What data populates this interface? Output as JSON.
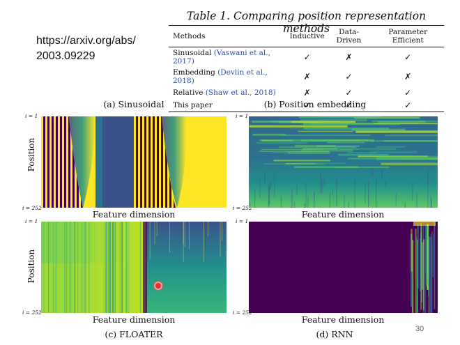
{
  "url": {
    "line1": "https://arxiv.org/abs/",
    "line2": "2003.09229"
  },
  "table": {
    "title_prefix": "Table 1.",
    "title_rest": " Comparing position representation methods",
    "headers": [
      "Methods",
      "Inductive",
      "Data-Driven",
      "Parameter Efficient"
    ],
    "rows": [
      {
        "method": "Sinusoidal",
        "cite": "(Vaswani et al., 2017)",
        "inductive": "✓",
        "data_driven": "✗",
        "param_eff": "✓"
      },
      {
        "method": "Embedding",
        "cite": "(Devlin et al., 2018)",
        "inductive": "✗",
        "data_driven": "✓",
        "param_eff": "✗"
      },
      {
        "method": "Relative",
        "cite": "(Shaw et al., 2018)",
        "inductive": "✗",
        "data_driven": "✓",
        "param_eff": "✓"
      },
      {
        "method": "This paper",
        "cite": "",
        "inductive": "✓",
        "data_driven": "✓",
        "param_eff": "✓"
      }
    ]
  },
  "panels": {
    "a": {
      "caption": "(a) Sinusoidal",
      "ylabel": "Position",
      "xlabel": "Feature dimension",
      "ytop": "i = 1",
      "ybottom": "i = 252"
    },
    "b": {
      "caption": "(b) Position embedding",
      "xlabel": "Feature dimension",
      "ytop": "i = 1",
      "ybottom": "i = 252"
    },
    "c": {
      "caption": "(c) FLOATER",
      "ylabel": "Position",
      "xlabel": "Feature dimension",
      "ytop": "i = 1",
      "ybottom": "i = 252"
    },
    "d": {
      "caption": "(d) RNN",
      "xlabel": "Feature dimension",
      "ytop": "i = 1",
      "ybottom": "i = 252"
    }
  },
  "colors": {
    "viridis_dark": "#440154",
    "viridis_mid": "#21918c",
    "viridis_light": "#fde725",
    "citation_blue": "#2a4ba8",
    "cursor": "#e13131"
  },
  "page_number": "30"
}
